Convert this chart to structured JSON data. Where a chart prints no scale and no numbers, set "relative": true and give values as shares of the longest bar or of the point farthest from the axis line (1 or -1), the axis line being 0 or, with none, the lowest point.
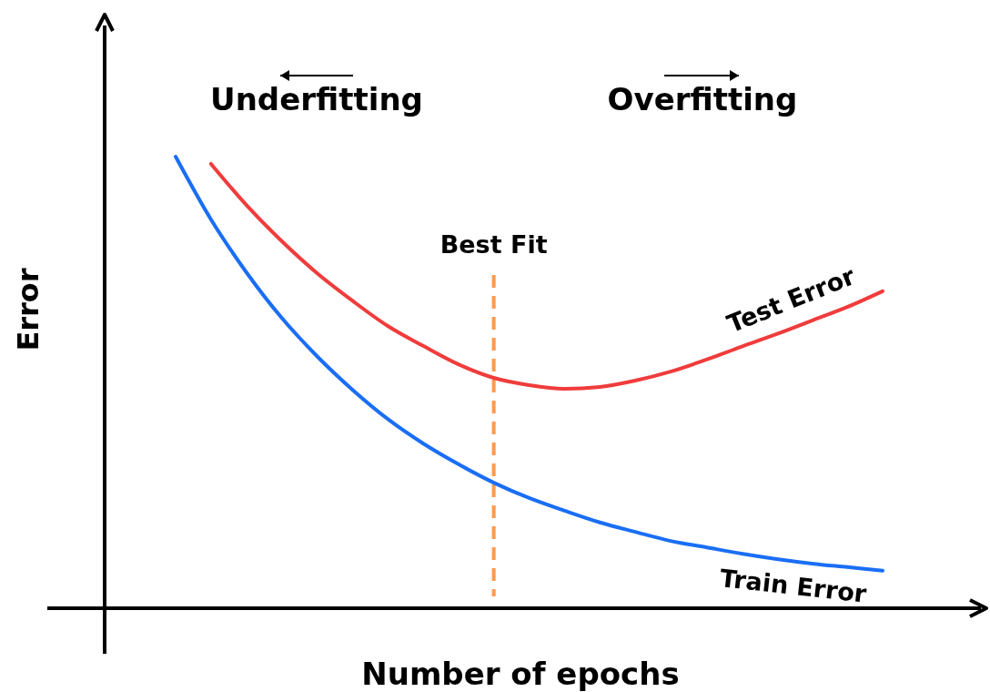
{
  "chart_data": {
    "type": "line",
    "relative": true,
    "xlabel": "Number of epochs",
    "ylabel": "Error",
    "categories": [
      null,
      null,
      null,
      null,
      null,
      null,
      null,
      null,
      null,
      null,
      null,
      null,
      null,
      null,
      null,
      null,
      null,
      null,
      null,
      null,
      null
    ],
    "series": [
      {
        "name": "Train Error",
        "color": "#1a6ef5",
        "values": [
          1,
          0.861,
          0.744,
          0.643,
          0.558,
          0.484,
          0.419,
          0.365,
          0.319,
          0.278,
          0.244,
          0.216,
          0.19,
          0.169,
          0.149,
          0.135,
          0.121,
          0.109,
          0.099,
          0.091,
          0.083
        ]
      },
      {
        "name": "Test Error",
        "color": "#f03c3c",
        "values": [
          null,
          0.984,
          0.893,
          0.813,
          0.742,
          0.681,
          0.625,
          0.581,
          0.54,
          0.51,
          0.494,
          0.486,
          0.49,
          0.504,
          0.524,
          0.55,
          0.579,
          0.607,
          0.637,
          0.667,
          0.702
        ]
      }
    ],
    "annotations": [
      "Underfitting",
      "Overfitting",
      "Best Fit"
    ]
  }
}
